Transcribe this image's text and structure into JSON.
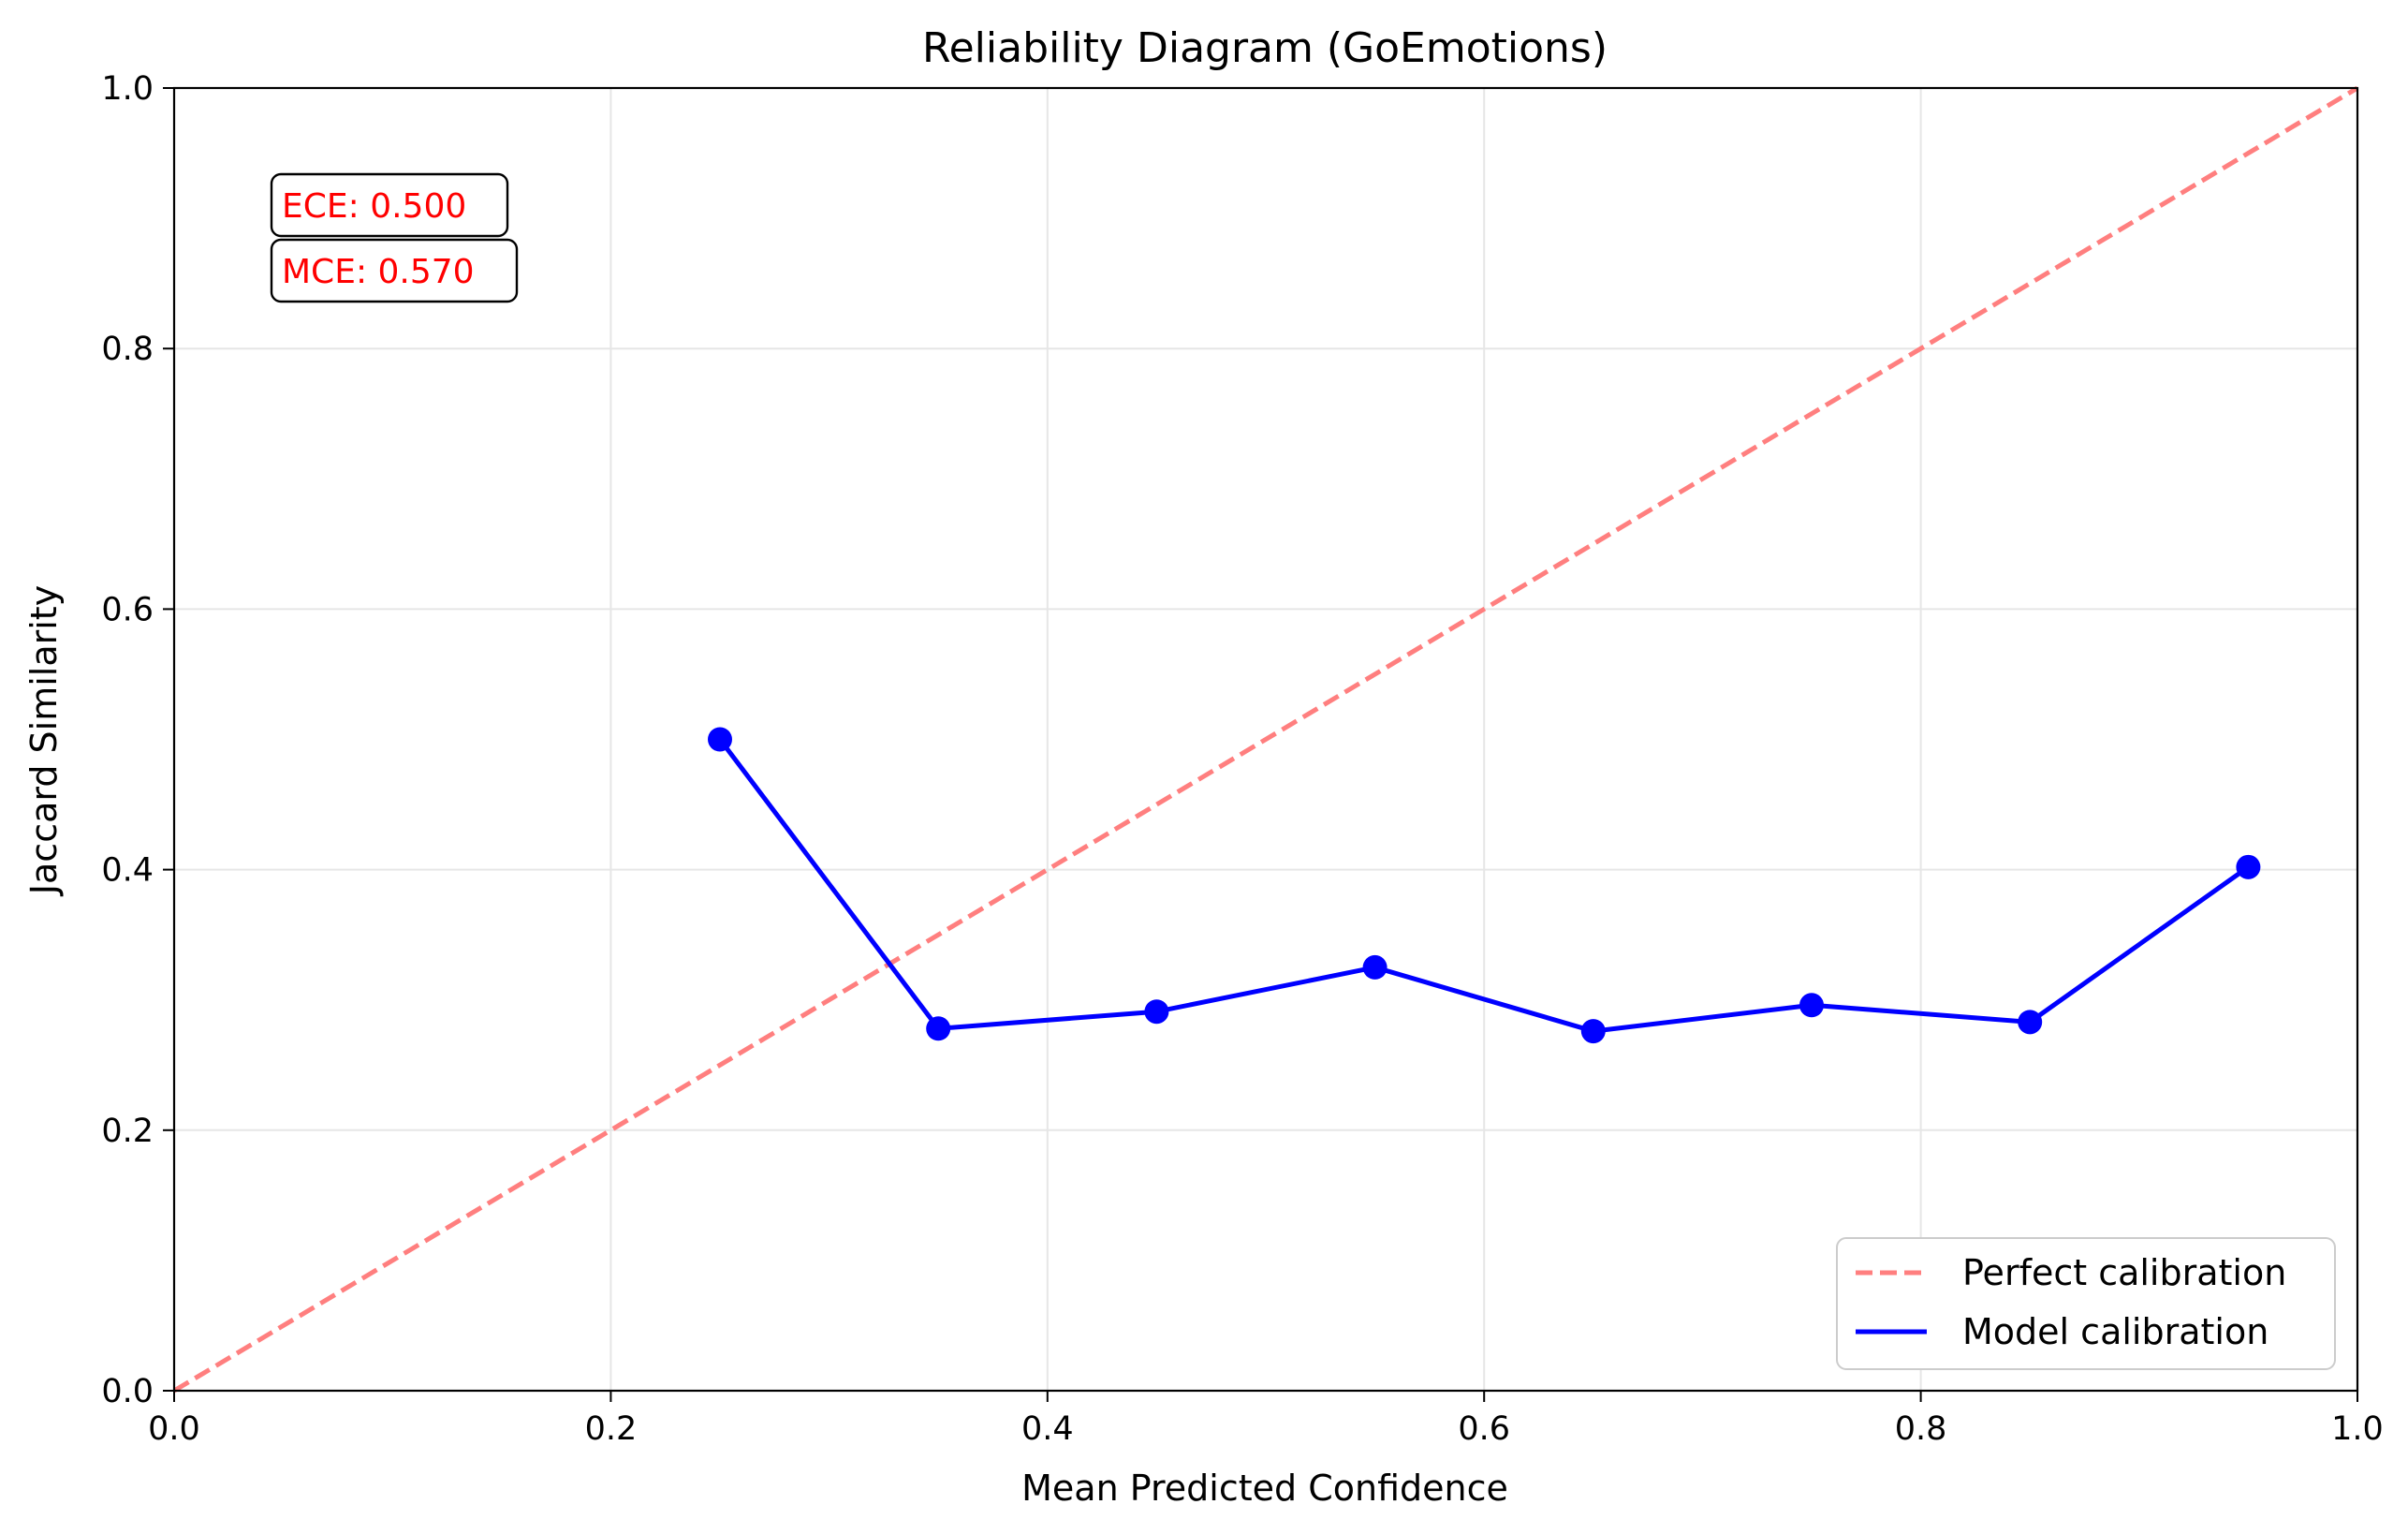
{
  "chart_data": {
    "type": "line",
    "title": "Reliability Diagram (GoEmotions)",
    "xlabel": "Mean Predicted Confidence",
    "ylabel": "Jaccard Similarity",
    "xlim": [
      0.0,
      1.0
    ],
    "ylim": [
      0.0,
      1.0
    ],
    "xticks": [
      "0.0",
      "0.2",
      "0.4",
      "0.6",
      "0.8",
      "1.0"
    ],
    "yticks": [
      "0.0",
      "0.2",
      "0.4",
      "0.6",
      "0.8",
      "1.0"
    ],
    "grid": true,
    "legend_position": "bottom-right",
    "series": [
      {
        "name": "Perfect calibration",
        "style": "dashed",
        "color": "#ff7f7f",
        "x": [
          0.0,
          1.0
        ],
        "y": [
          0.0,
          1.0
        ]
      },
      {
        "name": "Model calibration",
        "style": "solid-markers",
        "color": "#0000ff",
        "x": [
          0.25,
          0.35,
          0.45,
          0.55,
          0.65,
          0.75,
          0.85,
          0.95
        ],
        "y": [
          0.5,
          0.278,
          0.291,
          0.325,
          0.276,
          0.296,
          0.283,
          0.402
        ]
      }
    ],
    "annotations": [
      {
        "text": "ECE: 0.500",
        "color": "#ff0000"
      },
      {
        "text": "MCE: 0.570",
        "color": "#ff0000"
      }
    ]
  }
}
